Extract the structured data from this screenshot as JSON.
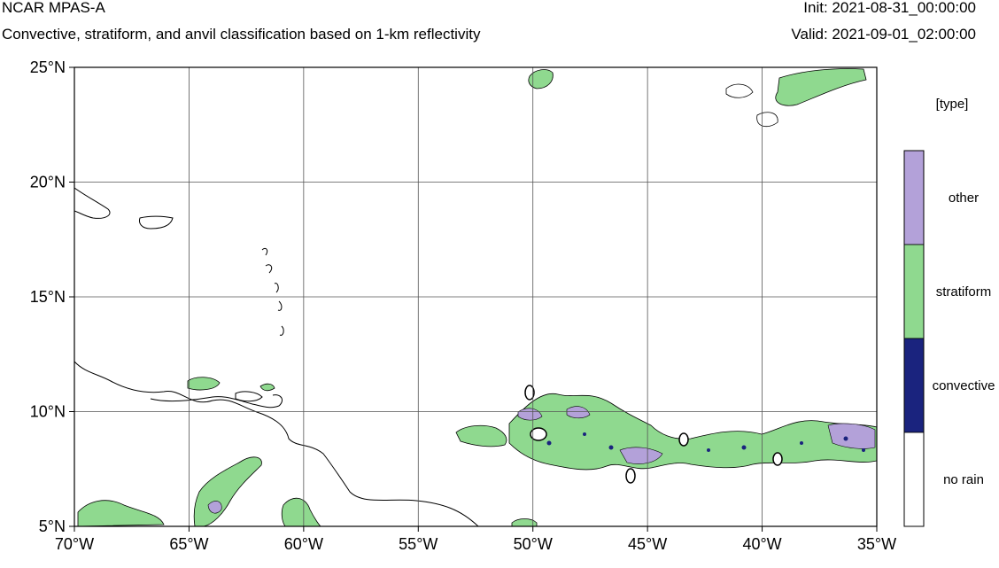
{
  "header": {
    "title": "NCAR MPAS-A",
    "subtitle": "Convective, stratiform, and anvil classification based on 1-km reflectivity",
    "init": "Init: 2021-08-31_00:00:00",
    "valid": "Valid: 2021-09-01_02:00:00"
  },
  "map": {
    "lon_range": [
      -70,
      -35
    ],
    "lat_range": [
      5,
      25
    ],
    "lon_ticks": [
      {
        "value": -70,
        "label": "70°W"
      },
      {
        "value": -65,
        "label": "65°W"
      },
      {
        "value": -60,
        "label": "60°W"
      },
      {
        "value": -55,
        "label": "55°W"
      },
      {
        "value": -50,
        "label": "50°W"
      },
      {
        "value": -45,
        "label": "45°W"
      },
      {
        "value": -40,
        "label": "40°W"
      },
      {
        "value": -35,
        "label": "35°W"
      }
    ],
    "lat_ticks": [
      {
        "value": 25,
        "label": "25°N"
      },
      {
        "value": 20,
        "label": "20°N"
      },
      {
        "value": 15,
        "label": "15°N"
      },
      {
        "value": 10,
        "label": "10°N"
      },
      {
        "value": 5,
        "label": "5°N"
      }
    ],
    "gridlines": true
  },
  "legend": {
    "title": "[type]",
    "items": [
      {
        "label": "other",
        "color": "#b3a1d9"
      },
      {
        "label": "stratiform",
        "color": "#8fd98f"
      },
      {
        "label": "convective",
        "color": "#1a237e"
      },
      {
        "label": "no rain",
        "color": "#ffffff"
      }
    ]
  },
  "colors": {
    "other": "#b3a1d9",
    "stratiform": "#8fd98f",
    "convective": "#1a237e",
    "coast": "#000000",
    "grid": "#555555"
  }
}
